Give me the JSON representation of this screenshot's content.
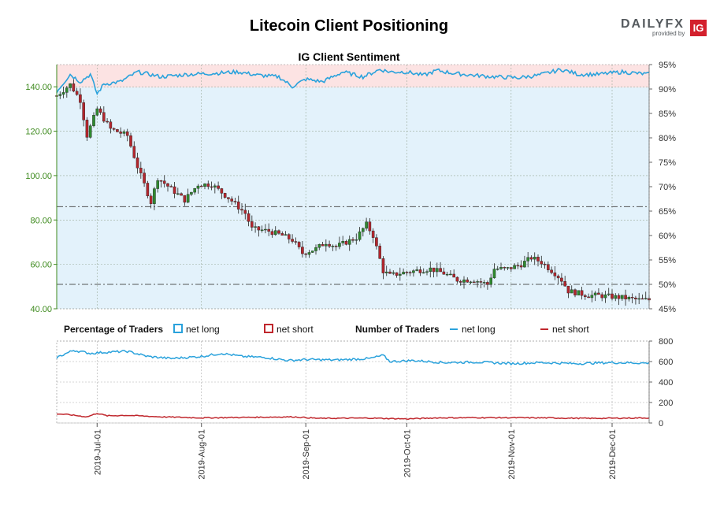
{
  "header": {
    "title": "Litecoin Client Positioning",
    "subtitle": "IG Client Sentiment",
    "brand_name": "DAILYFX",
    "brand_sub": "provided by",
    "brand_logo": "IG"
  },
  "legend": {
    "pct_title": "Percentage of Traders",
    "pct_long": "net long",
    "pct_short": "net short",
    "num_title": "Number of Traders",
    "num_long": "net long",
    "num_short": "net short"
  },
  "colors": {
    "long": "#2aa2dc",
    "short": "#c0272d",
    "long_fill": "#e3f2fb",
    "short_fill": "#fce3e3",
    "price_axis": "#3d8a1d",
    "candle_up": "#2f8a2f",
    "candle_down": "#b3262d"
  },
  "chart_data": [
    {
      "type": "candlestick",
      "title": "IG Client Sentiment",
      "x_start": "2019-06-19",
      "x_end": "2019-12-12",
      "x_ticks": [
        "2019-Jul-01",
        "2019-Aug-01",
        "2019-Sep-01",
        "2019-Oct-01",
        "2019-Nov-01",
        "2019-Dec-01"
      ],
      "left_axis": {
        "ylim": [
          40,
          150
        ],
        "ticks": [
          "40.00",
          "60.00",
          "80.00",
          "100.00",
          "120.00",
          "140.00"
        ]
      },
      "right_axis": {
        "ylim": [
          45,
          95
        ],
        "ticks": [
          "45%",
          "50%",
          "55%",
          "60%",
          "65%",
          "70%",
          "75%",
          "80%",
          "85%",
          "90%",
          "95%"
        ]
      },
      "reference_lines": [
        86,
        51
      ],
      "price_anchors": [
        [
          "2019-06-19",
          136
        ],
        [
          "2019-06-23",
          141
        ],
        [
          "2019-06-26",
          134
        ],
        [
          "2019-06-28",
          118
        ],
        [
          "2019-07-01",
          130
        ],
        [
          "2019-07-05",
          121
        ],
        [
          "2019-07-10",
          118
        ],
        [
          "2019-07-13",
          104
        ],
        [
          "2019-07-17",
          88
        ],
        [
          "2019-07-19",
          99
        ],
        [
          "2019-07-23",
          94
        ],
        [
          "2019-07-27",
          89
        ],
        [
          "2019-07-31",
          96
        ],
        [
          "2019-08-04",
          96
        ],
        [
          "2019-08-09",
          90
        ],
        [
          "2019-08-14",
          83
        ],
        [
          "2019-08-16",
          76
        ],
        [
          "2019-08-21",
          75
        ],
        [
          "2019-08-25",
          73
        ],
        [
          "2019-08-28",
          71
        ],
        [
          "2019-08-31",
          65
        ],
        [
          "2019-09-04",
          67
        ],
        [
          "2019-09-07",
          70
        ],
        [
          "2019-09-10",
          68
        ],
        [
          "2019-09-13",
          70
        ],
        [
          "2019-09-16",
          72
        ],
        [
          "2019-09-19",
          78
        ],
        [
          "2019-09-21",
          73
        ],
        [
          "2019-09-24",
          57
        ],
        [
          "2019-09-26",
          55
        ],
        [
          "2019-09-29",
          56
        ],
        [
          "2019-10-03",
          57
        ],
        [
          "2019-10-08",
          58
        ],
        [
          "2019-10-12",
          56
        ],
        [
          "2019-10-16",
          53
        ],
        [
          "2019-10-21",
          53
        ],
        [
          "2019-10-25",
          51
        ],
        [
          "2019-10-27",
          58
        ],
        [
          "2019-10-31",
          58
        ],
        [
          "2019-11-04",
          60
        ],
        [
          "2019-11-07",
          63
        ],
        [
          "2019-11-10",
          61
        ],
        [
          "2019-11-14",
          56
        ],
        [
          "2019-11-16",
          53
        ],
        [
          "2019-11-18",
          48
        ],
        [
          "2019-11-21",
          47
        ],
        [
          "2019-11-24",
          46
        ],
        [
          "2019-11-27",
          46
        ],
        [
          "2019-12-04",
          45
        ],
        [
          "2019-12-09",
          44
        ],
        [
          "2019-12-12",
          44
        ]
      ],
      "sentiment_anchors": [
        [
          "2019-06-19",
          89.5
        ],
        [
          "2019-06-23",
          93
        ],
        [
          "2019-06-26",
          91.5
        ],
        [
          "2019-06-29",
          93
        ],
        [
          "2019-07-01",
          89
        ],
        [
          "2019-07-03",
          91
        ],
        [
          "2019-07-08",
          91.5
        ],
        [
          "2019-07-13",
          93.5
        ],
        [
          "2019-07-20",
          92.5
        ],
        [
          "2019-07-28",
          93
        ],
        [
          "2019-08-04",
          93.2
        ],
        [
          "2019-08-12",
          93.5
        ],
        [
          "2019-08-18",
          92.8
        ],
        [
          "2019-08-24",
          92.5
        ],
        [
          "2019-08-28",
          90.5
        ],
        [
          "2019-09-01",
          92
        ],
        [
          "2019-09-06",
          91.5
        ],
        [
          "2019-09-12",
          93.5
        ],
        [
          "2019-09-18",
          92.5
        ],
        [
          "2019-09-23",
          94
        ],
        [
          "2019-09-26",
          93.5
        ],
        [
          "2019-10-01",
          93.5
        ],
        [
          "2019-10-06",
          92.8
        ],
        [
          "2019-10-10",
          93.8
        ],
        [
          "2019-10-15",
          93.2
        ],
        [
          "2019-10-21",
          92.8
        ],
        [
          "2019-10-27",
          92.5
        ],
        [
          "2019-11-03",
          92.3
        ],
        [
          "2019-11-09",
          92.8
        ],
        [
          "2019-11-16",
          94
        ],
        [
          "2019-11-21",
          93
        ],
        [
          "2019-11-27",
          93
        ],
        [
          "2019-12-04",
          93.5
        ],
        [
          "2019-12-12",
          93
        ]
      ]
    },
    {
      "type": "line",
      "title": "Number of Traders",
      "ylim": [
        0,
        800
      ],
      "y_ticks": [
        "0",
        "200",
        "400",
        "600",
        "800"
      ],
      "series": [
        {
          "name": "net long",
          "anchors": [
            [
              "2019-06-19",
              640
            ],
            [
              "2019-06-24",
              710
            ],
            [
              "2019-06-29",
              680
            ],
            [
              "2019-07-03",
              690
            ],
            [
              "2019-07-10",
              700
            ],
            [
              "2019-07-16",
              650
            ],
            [
              "2019-07-23",
              630
            ],
            [
              "2019-08-01",
              650
            ],
            [
              "2019-08-07",
              680
            ],
            [
              "2019-08-13",
              650
            ],
            [
              "2019-08-20",
              640
            ],
            [
              "2019-08-27",
              610
            ],
            [
              "2019-09-01",
              620
            ],
            [
              "2019-09-10",
              615
            ],
            [
              "2019-09-20",
              630
            ],
            [
              "2019-09-24",
              660
            ],
            [
              "2019-09-26",
              600
            ],
            [
              "2019-10-03",
              610
            ],
            [
              "2019-10-12",
              590
            ],
            [
              "2019-10-22",
              595
            ],
            [
              "2019-11-01",
              580
            ],
            [
              "2019-11-10",
              590
            ],
            [
              "2019-11-20",
              580
            ],
            [
              "2019-12-01",
              590
            ],
            [
              "2019-12-12",
              585
            ]
          ]
        },
        {
          "name": "net short",
          "anchors": [
            [
              "2019-06-19",
              90
            ],
            [
              "2019-06-23",
              80
            ],
            [
              "2019-06-28",
              60
            ],
            [
              "2019-07-01",
              95
            ],
            [
              "2019-07-04",
              70
            ],
            [
              "2019-07-10",
              75
            ],
            [
              "2019-07-20",
              60
            ],
            [
              "2019-08-01",
              50
            ],
            [
              "2019-08-15",
              55
            ],
            [
              "2019-08-28",
              60
            ],
            [
              "2019-09-05",
              45
            ],
            [
              "2019-09-20",
              48
            ],
            [
              "2019-10-01",
              40
            ],
            [
              "2019-10-10",
              50
            ],
            [
              "2019-10-25",
              52
            ],
            [
              "2019-11-10",
              50
            ],
            [
              "2019-11-25",
              45
            ],
            [
              "2019-12-12",
              50
            ]
          ]
        }
      ]
    }
  ]
}
